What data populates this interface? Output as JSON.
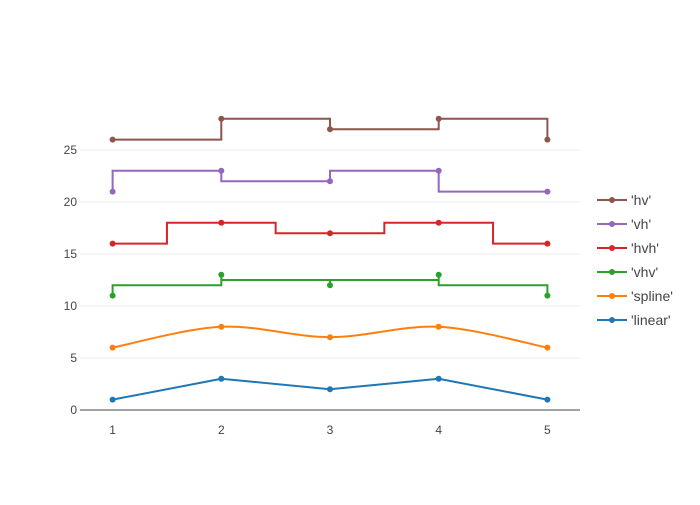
{
  "chart_data": {
    "type": "line",
    "title": "",
    "xlabel": "",
    "ylabel": "",
    "x": [
      1,
      2,
      3,
      4,
      5
    ],
    "xlim": [
      0.7,
      5.3
    ],
    "ylim": [
      0,
      30
    ],
    "x_ticks": [
      1,
      2,
      3,
      4,
      5
    ],
    "y_ticks": [
      0,
      5,
      10,
      15,
      20,
      25
    ],
    "grid": true,
    "legend_position": "right",
    "series": [
      {
        "name": "'linear'",
        "shape": "linear",
        "color": "#1f77b4",
        "values": [
          1,
          3,
          2,
          3,
          1
        ]
      },
      {
        "name": "'spline'",
        "shape": "spline",
        "color": "#ff7f0e",
        "values": [
          6,
          8,
          7,
          8,
          6
        ]
      },
      {
        "name": "'vhv'",
        "shape": "vhv",
        "color": "#2ca02c",
        "values": [
          11,
          13,
          12,
          13,
          11
        ]
      },
      {
        "name": "'hvh'",
        "shape": "hvh",
        "color": "#d62728",
        "values": [
          16,
          18,
          17,
          18,
          16
        ]
      },
      {
        "name": "'vh'",
        "shape": "vh",
        "color": "#9467bd",
        "values": [
          21,
          23,
          22,
          23,
          21
        ]
      },
      {
        "name": "'hv'",
        "shape": "hv",
        "color": "#8c564b",
        "values": [
          26,
          28,
          27,
          28,
          26
        ]
      }
    ],
    "legend_order": [
      "'hv'",
      "'vh'",
      "'hvh'",
      "'vhv'",
      "'spline'",
      "'linear'"
    ]
  }
}
